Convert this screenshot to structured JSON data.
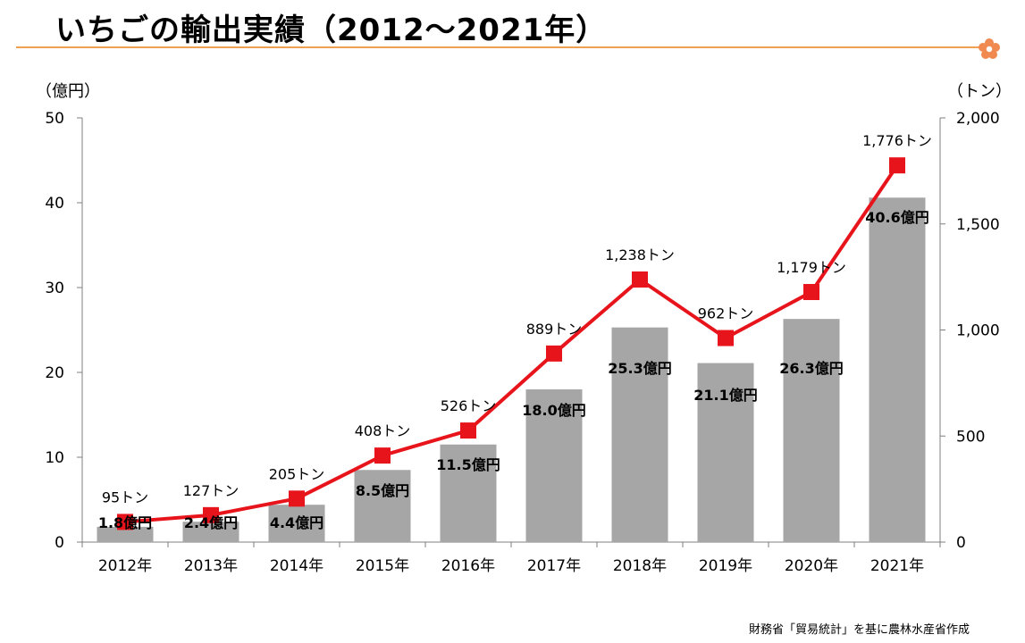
{
  "page": {
    "title": "いちごの輸出実績（2012〜2021年）",
    "source": "財務省「貿易統計」を基に農林水産省作成"
  },
  "colors": {
    "bar": "#a6a6a6",
    "line": "#e8141b",
    "title_rule": "#f0a050",
    "flower": "#f08a50"
  },
  "chart_data": {
    "type": "bar",
    "categories": [
      "2012年",
      "2013年",
      "2014年",
      "2015年",
      "2016年",
      "2017年",
      "2018年",
      "2019年",
      "2020年",
      "2021年"
    ],
    "series": [
      {
        "type": "bar",
        "axis": "left",
        "values": [
          1.8,
          2.4,
          4.4,
          8.5,
          11.5,
          18.0,
          25.3,
          21.1,
          26.3,
          40.6
        ],
        "labels": [
          "1.8億円",
          "2.4億円",
          "4.4億円",
          "8.5億円",
          "11.5億円",
          "18.0億円",
          "25.3億円",
          "21.1億円",
          "26.3億円",
          "40.6億円"
        ]
      },
      {
        "type": "line",
        "axis": "right",
        "values": [
          95,
          127,
          205,
          408,
          526,
          889,
          1238,
          962,
          1179,
          1776
        ],
        "labels": [
          "95トン",
          "127トン",
          "205トン",
          "408トン",
          "526トン",
          "889トン",
          "1,238トン",
          "962トン",
          "1,179トン",
          "1,776トン"
        ]
      }
    ],
    "y_left": {
      "label": "（億円）",
      "ylim": [
        0,
        50
      ],
      "ticks": [
        "0",
        "10",
        "20",
        "30",
        "40",
        "50"
      ]
    },
    "y_right": {
      "label": "（トン）",
      "ylim": [
        0,
        2000
      ],
      "ticks": [
        "0",
        "500",
        "1,000",
        "1,500",
        "2,000"
      ]
    },
    "grid": false,
    "legend": "none"
  }
}
